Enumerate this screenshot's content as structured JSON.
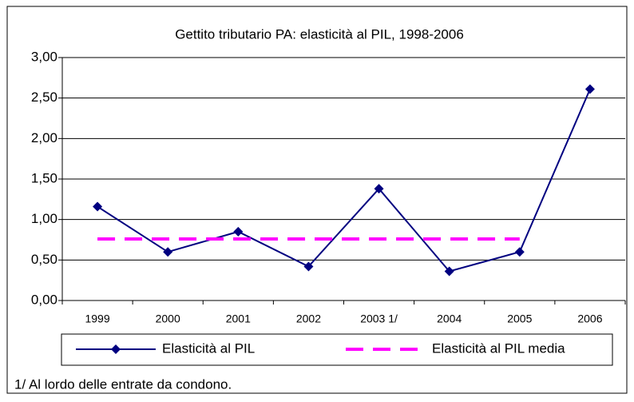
{
  "chart_data": {
    "type": "line",
    "title": "Gettito tributario PA: elasticità al PIL, 1998-2006",
    "categories": [
      "1999",
      "2000",
      "2001",
      "2002",
      "2003 1/",
      "2004",
      "2005",
      "2006"
    ],
    "series": [
      {
        "name": "Elasticità al PIL",
        "color": "#000080",
        "marker": "diamond",
        "values": [
          1.16,
          0.6,
          0.85,
          0.42,
          1.38,
          0.36,
          0.6,
          2.61
        ]
      },
      {
        "name": "Elasticità al PIL media",
        "color": "#ff00ff",
        "dashed": true,
        "values": [
          0.76,
          0.76,
          0.76,
          0.76,
          0.76,
          0.76,
          0.76,
          null
        ]
      }
    ],
    "ylim": [
      0,
      3
    ],
    "yticks": [
      {
        "value": 0,
        "label": "0,00"
      },
      {
        "value": 0.5,
        "label": "0,50"
      },
      {
        "value": 1,
        "label": "1,00"
      },
      {
        "value": 1.5,
        "label": "1,50"
      },
      {
        "value": 2,
        "label": "2,00"
      },
      {
        "value": 2.5,
        "label": "2,50"
      },
      {
        "value": 3,
        "label": "3,00"
      }
    ],
    "grid": true,
    "legend": "bottom",
    "footnote": "1/ Al lordo delle entrate da condono."
  }
}
